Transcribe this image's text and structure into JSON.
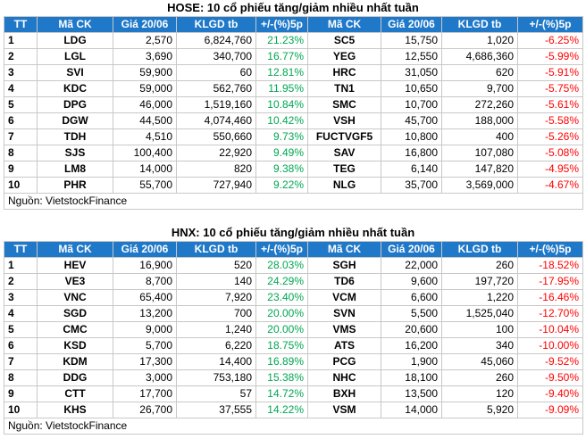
{
  "colors": {
    "header": "#1f78c8",
    "gain": "#00a650",
    "loss": "#ff0000"
  },
  "sections": [
    {
      "title": "HOSE: 10 cổ phiếu tăng/giảm nhiều nhất tuần",
      "headers": [
        "TT",
        "Mã CK",
        "Giá 20/06",
        "KLGD tb",
        "+/-(%)5p",
        "Mã CK",
        "Giá 20/06",
        "KLGD tb",
        "+/-(%)5p"
      ],
      "rows": [
        [
          "1",
          "LDG",
          "2,570",
          "6,824,760",
          "21.23%",
          "SC5",
          "15,750",
          "1,020",
          "-6.25%"
        ],
        [
          "2",
          "LGL",
          "3,690",
          "340,700",
          "16.77%",
          "YEG",
          "12,550",
          "4,686,360",
          "-5.99%"
        ],
        [
          "3",
          "SVI",
          "59,900",
          "60",
          "12.81%",
          "HRC",
          "31,050",
          "620",
          "-5.91%"
        ],
        [
          "4",
          "KDC",
          "59,000",
          "562,760",
          "11.95%",
          "TN1",
          "10,650",
          "9,700",
          "-5.75%"
        ],
        [
          "5",
          "DPG",
          "46,000",
          "1,519,160",
          "10.84%",
          "SMC",
          "10,700",
          "272,260",
          "-5.61%"
        ],
        [
          "6",
          "DGW",
          "44,500",
          "4,074,460",
          "10.42%",
          "VSH",
          "45,700",
          "188,000",
          "-5.58%"
        ],
        [
          "7",
          "TDH",
          "4,510",
          "550,660",
          "9.73%",
          "FUCTVGF5",
          "10,800",
          "400",
          "-5.26%"
        ],
        [
          "8",
          "SJS",
          "100,400",
          "22,920",
          "9.49%",
          "SAV",
          "16,800",
          "107,080",
          "-5.08%"
        ],
        [
          "9",
          "LM8",
          "14,000",
          "820",
          "9.38%",
          "TEG",
          "6,140",
          "147,820",
          "-4.95%"
        ],
        [
          "10",
          "PHR",
          "55,700",
          "727,940",
          "9.22%",
          "NLG",
          "35,700",
          "3,569,000",
          "-4.67%"
        ]
      ],
      "source": "Nguồn: VietstockFinance"
    },
    {
      "title": "HNX: 10 cổ phiếu tăng/giảm nhiều nhất tuần",
      "headers": [
        "TT",
        "Mã CK",
        "Giá 20/06",
        "KLGD tb",
        "+/-(%)5p",
        "Mã CK",
        "Giá 20/06",
        "KLGD tb",
        "+/-(%)5p"
      ],
      "rows": [
        [
          "1",
          "HEV",
          "16,900",
          "520",
          "28.03%",
          "SGH",
          "22,000",
          "260",
          "-18.52%"
        ],
        [
          "2",
          "VE3",
          "8,700",
          "140",
          "24.29%",
          "TD6",
          "9,600",
          "197,720",
          "-17.95%"
        ],
        [
          "3",
          "VNC",
          "65,400",
          "7,920",
          "23.40%",
          "VCM",
          "6,600",
          "1,220",
          "-16.46%"
        ],
        [
          "4",
          "SGD",
          "13,200",
          "700",
          "20.00%",
          "SVN",
          "5,500",
          "1,525,040",
          "-12.70%"
        ],
        [
          "5",
          "CMC",
          "9,000",
          "1,240",
          "20.00%",
          "VMS",
          "20,600",
          "100",
          "-10.04%"
        ],
        [
          "6",
          "KSD",
          "5,700",
          "6,220",
          "18.75%",
          "ATS",
          "16,200",
          "340",
          "-10.00%"
        ],
        [
          "7",
          "KDM",
          "17,300",
          "14,400",
          "16.89%",
          "PCG",
          "1,900",
          "45,060",
          "-9.52%"
        ],
        [
          "8",
          "DDG",
          "3,000",
          "753,180",
          "15.38%",
          "NHC",
          "18,100",
          "260",
          "-9.50%"
        ],
        [
          "9",
          "CTT",
          "17,700",
          "57",
          "14.72%",
          "BXH",
          "13,500",
          "120",
          "-9.40%"
        ],
        [
          "10",
          "KHS",
          "26,700",
          "37,555",
          "14.22%",
          "VSM",
          "14,000",
          "5,920",
          "-9.09%"
        ]
      ],
      "source": "Nguồn: VietstockFinance"
    }
  ]
}
